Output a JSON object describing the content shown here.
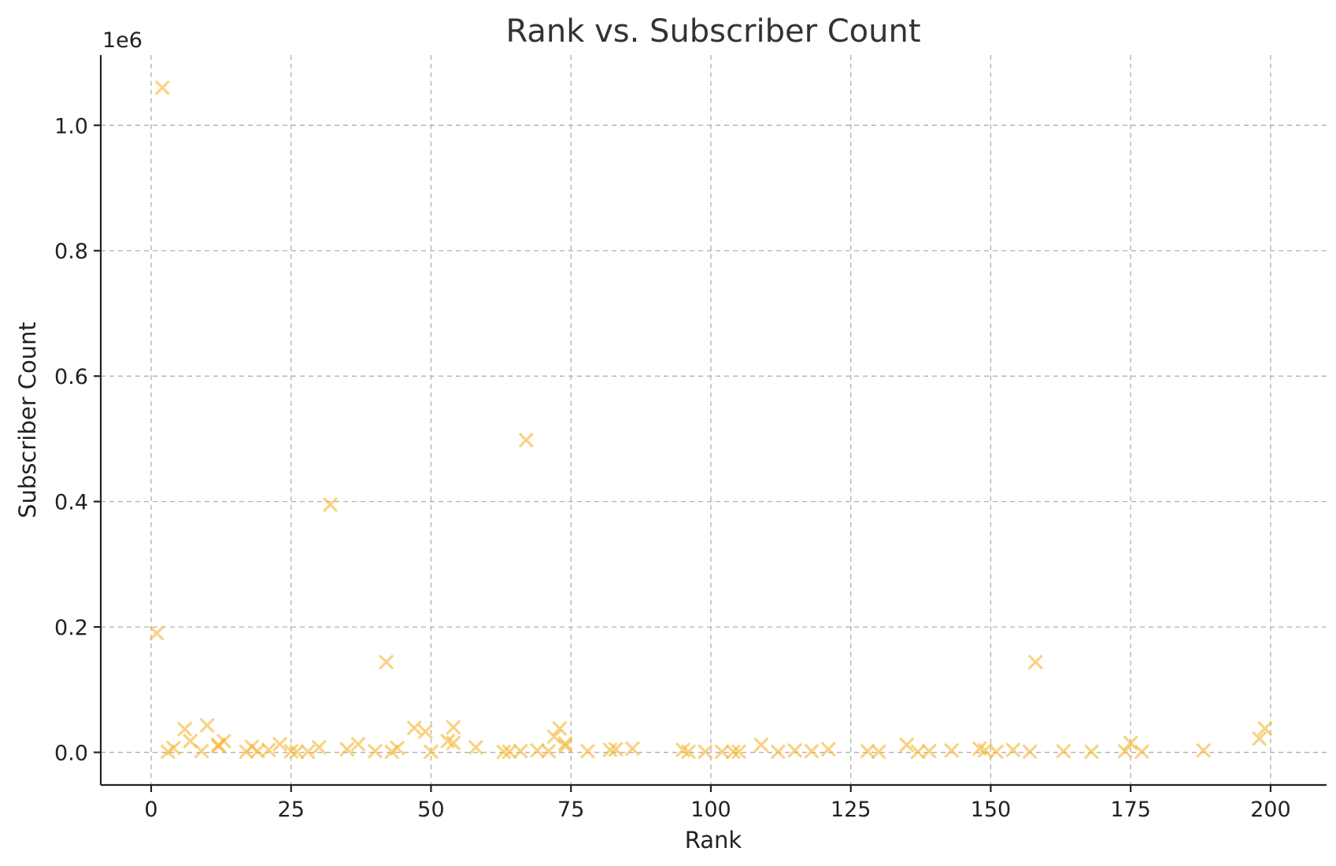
{
  "chart_data": {
    "type": "scatter",
    "title": "Rank vs. Subscriber Count",
    "xlabel": "Rank",
    "ylabel": "Subscriber Count",
    "y_exponent_label": "1e6",
    "y_scale_factor": 1000000,
    "xlim": [
      -9,
      210
    ],
    "ylim": [
      -52000,
      1112000
    ],
    "x_ticks": [
      0,
      25,
      50,
      75,
      100,
      125,
      150,
      175,
      200
    ],
    "y_ticks": [
      0,
      200000,
      400000,
      600000,
      800000,
      1000000
    ],
    "x_tick_labels": [
      "0",
      "25",
      "50",
      "75",
      "100",
      "125",
      "150",
      "175",
      "200"
    ],
    "y_tick_labels": [
      "0.0",
      "0.2",
      "0.4",
      "0.6",
      "0.8",
      "1.0"
    ],
    "grid": true,
    "marker": "x",
    "color": "#f5b731",
    "points": [
      [
        2,
        1060000
      ],
      [
        1,
        190000
      ],
      [
        32,
        395000
      ],
      [
        67,
        498000
      ],
      [
        42,
        144000
      ],
      [
        158,
        144000
      ],
      [
        3,
        1000
      ],
      [
        4,
        7000
      ],
      [
        6,
        37000
      ],
      [
        7,
        18000
      ],
      [
        9,
        2000
      ],
      [
        10,
        43000
      ],
      [
        12,
        12000
      ],
      [
        13,
        18000
      ],
      [
        12,
        10000
      ],
      [
        17,
        1000
      ],
      [
        18,
        9000
      ],
      [
        19,
        2000
      ],
      [
        21,
        4000
      ],
      [
        23,
        13000
      ],
      [
        25,
        2000
      ],
      [
        26,
        1000
      ],
      [
        28,
        1000
      ],
      [
        30,
        8000
      ],
      [
        35,
        5000
      ],
      [
        37,
        13000
      ],
      [
        40,
        2000
      ],
      [
        43,
        1000
      ],
      [
        44,
        7000
      ],
      [
        47,
        39000
      ],
      [
        49,
        33000
      ],
      [
        50,
        1000
      ],
      [
        53,
        18000
      ],
      [
        54,
        15000
      ],
      [
        54,
        40000
      ],
      [
        58,
        8000
      ],
      [
        63,
        1000
      ],
      [
        64,
        1000
      ],
      [
        66,
        2000
      ],
      [
        69,
        3000
      ],
      [
        71,
        2000
      ],
      [
        72,
        25000
      ],
      [
        73,
        38000
      ],
      [
        74,
        10000
      ],
      [
        74,
        14000
      ],
      [
        78,
        2000
      ],
      [
        82,
        4000
      ],
      [
        83,
        5000
      ],
      [
        86,
        6000
      ],
      [
        95,
        4000
      ],
      [
        96,
        1000
      ],
      [
        99,
        1000
      ],
      [
        102,
        1000
      ],
      [
        104,
        1000
      ],
      [
        105,
        1000
      ],
      [
        109,
        12000
      ],
      [
        112,
        1000
      ],
      [
        115,
        3000
      ],
      [
        118,
        2000
      ],
      [
        121,
        5000
      ],
      [
        128,
        2000
      ],
      [
        130,
        1000
      ],
      [
        135,
        12000
      ],
      [
        137,
        1000
      ],
      [
        139,
        2000
      ],
      [
        143,
        3000
      ],
      [
        148,
        6000
      ],
      [
        149,
        3000
      ],
      [
        151,
        1000
      ],
      [
        154,
        4000
      ],
      [
        157,
        1000
      ],
      [
        163,
        2000
      ],
      [
        168,
        1000
      ],
      [
        174,
        2000
      ],
      [
        175,
        15000
      ],
      [
        177,
        1000
      ],
      [
        188,
        3000
      ],
      [
        198,
        22000
      ],
      [
        199,
        38000
      ]
    ]
  }
}
